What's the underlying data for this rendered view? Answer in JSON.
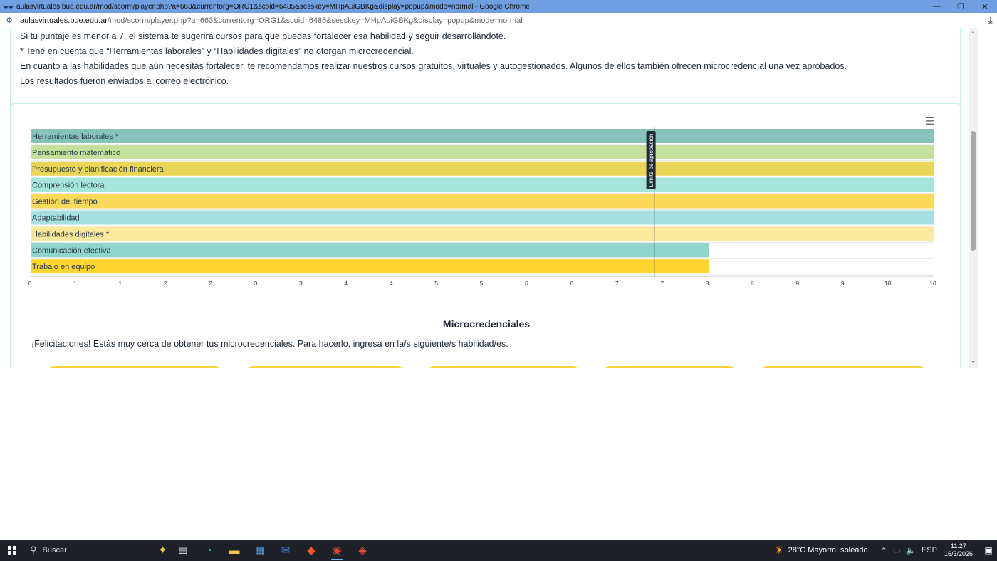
{
  "window": {
    "title": "aulasvirtuales.bue.edu.ar/mod/scorm/player.php?a=663&currentorg=ORG1&scoid=6485&sesskey=MHpAuiGBKg&display=popup&mode=normal - Google Chrome",
    "minimize": "—",
    "restore": "❐",
    "close": "✕"
  },
  "address": {
    "host": "aulasvirtuales.bue.edu.ar",
    "path": "/mod/scorm/player.php?a=663&currentorg=ORG1&scoid=6485&sesskey=MHpAuiGBKg&display=popup&mode=normal",
    "download_icon": "download-icon"
  },
  "info": {
    "line1": "Si tu puntaje es menor a 7, el sistema te sugerirá cursos para que puedas fortalecer esa habilidad y seguir desarrollándote.",
    "line2": "* Tené en cuenta que “Herramientas laborales” y “Habilidades digitales” no otorgan microcredencial.",
    "line3": "En cuanto a las habilidades que aún necesitás fortalecer, te recomendamos realizar nuestros cursos gratuitos, virtuales y autogestionados. Algunos de ellos también ofrecen microcredencial una vez aprobados.",
    "line4": "Los resultados fueron enviados al correo electrónico."
  },
  "chart_data": {
    "type": "bar",
    "orientation": "horizontal",
    "categories": [
      "Herramientas laborales *",
      "Pensamiento matemático",
      "Presupuesto y planificación financiera",
      "Comprensión lectora",
      "Gestión del tiempo",
      "Adaptabilidad",
      "Habilidades digitales *",
      "Comunicación efectiva",
      "Trabajo en equipo"
    ],
    "values": [
      10,
      10,
      10,
      10,
      10,
      10,
      10,
      7.5,
      7.5
    ],
    "colors": [
      "#86c3bd",
      "#c5e09c",
      "#e9d556",
      "#a6e5dc",
      "#fbda5a",
      "#a6e0df",
      "#fde99c",
      "#8fd5cc",
      "#fdd531"
    ],
    "xlim": [
      0,
      10
    ],
    "x_tick_labels": [
      "0",
      "1",
      "1",
      "2",
      "2",
      "3",
      "3",
      "4",
      "4",
      "5",
      "5",
      "6",
      "6",
      "7",
      "7",
      "8",
      "8",
      "9",
      "9",
      "10",
      "10"
    ],
    "threshold": {
      "value": 7,
      "label": "Límite de aprobación"
    },
    "grid": false,
    "legend": "none"
  },
  "micro": {
    "title": "Microcredenciales",
    "text": "¡Felicitaciones! Estás muy cerca de obtener tus microcredenciales. Para hacerlo, ingresá en la/s siguiente/s habilidad/es."
  },
  "taskbar": {
    "search_label": "Buscar",
    "weather": "28°C  Mayorm. soleado",
    "lang": "ESP",
    "time": "11:27",
    "date": "16/3/2026"
  }
}
